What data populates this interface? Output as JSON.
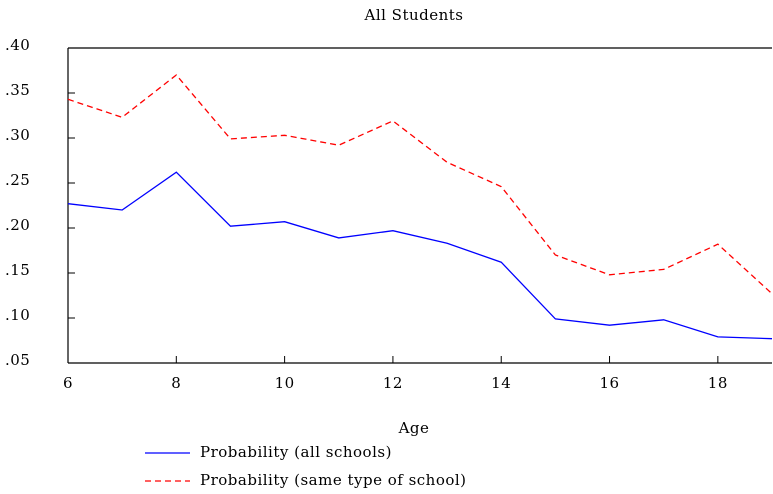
{
  "chart_data": {
    "type": "line",
    "title": "All Students",
    "x_label": "Age",
    "x": [
      6,
      7,
      8,
      9,
      10,
      11,
      12,
      13,
      14,
      15,
      16,
      17,
      18,
      19
    ],
    "series": [
      {
        "name": "Probability (all schools)",
        "color": "#0000ff",
        "linestyle": "solid",
        "values": [
          0.227,
          0.22,
          0.262,
          0.202,
          0.207,
          0.189,
          0.197,
          0.183,
          0.162,
          0.099,
          0.092,
          0.098,
          0.079,
          0.077
        ]
      },
      {
        "name": "Probability (same type of school)",
        "color": "#ff0000",
        "linestyle": "dashed",
        "values": [
          0.343,
          0.323,
          0.37,
          0.299,
          0.303,
          0.292,
          0.319,
          0.273,
          0.246,
          0.17,
          0.148,
          0.154,
          0.182,
          0.127
        ]
      }
    ],
    "xlim": [
      6,
      19
    ],
    "xticks": [
      6,
      8,
      10,
      12,
      14,
      16,
      18
    ],
    "ylim": [
      0.05,
      0.4
    ],
    "yticks": [
      {
        "value": 0.05,
        "label": ".05"
      },
      {
        "value": 0.1,
        "label": ".10"
      },
      {
        "value": 0.15,
        "label": ".15"
      },
      {
        "value": 0.2,
        "label": ".20"
      },
      {
        "value": 0.25,
        "label": ".25"
      },
      {
        "value": 0.3,
        "label": ".30"
      },
      {
        "value": 0.35,
        "label": ".35"
      },
      {
        "value": 0.4,
        "label": ".40"
      }
    ],
    "grid": false,
    "legend": "bottom"
  }
}
